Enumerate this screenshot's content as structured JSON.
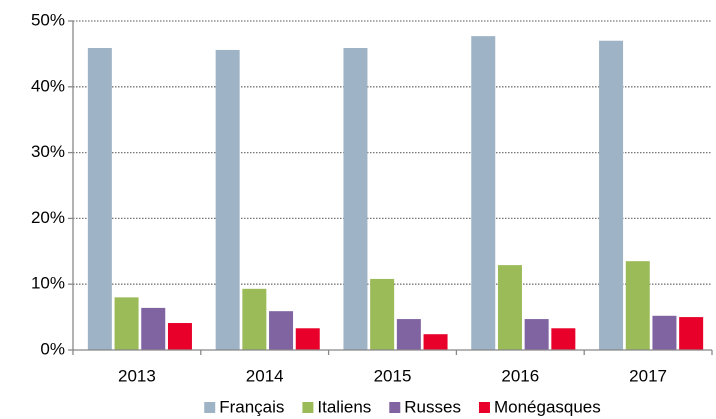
{
  "chart_data": {
    "type": "bar",
    "categories": [
      "2013",
      "2014",
      "2015",
      "2016",
      "2017"
    ],
    "series": [
      {
        "name": "Français",
        "color": "#9fb3c6",
        "values": [
          45.9,
          45.6,
          45.9,
          47.7,
          47.0
        ]
      },
      {
        "name": "Italiens",
        "color": "#9bbb59",
        "values": [
          8.0,
          9.3,
          10.8,
          12.9,
          13.5
        ]
      },
      {
        "name": "Russes",
        "color": "#8064a2",
        "values": [
          6.4,
          5.9,
          4.7,
          4.7,
          5.2
        ]
      },
      {
        "name": "Monégasques",
        "color": "#e8002a",
        "values": [
          4.1,
          3.3,
          2.4,
          3.3,
          5.0
        ]
      }
    ],
    "ylim": [
      0,
      50
    ],
    "yticks": [
      {
        "value": 0,
        "label": "0%"
      },
      {
        "value": 10,
        "label": "10%"
      },
      {
        "value": 20,
        "label": "20%"
      },
      {
        "value": 30,
        "label": "30%"
      },
      {
        "value": 40,
        "label": "40%"
      },
      {
        "value": 50,
        "label": "50%"
      }
    ],
    "grid": true,
    "legend": "bottom"
  }
}
